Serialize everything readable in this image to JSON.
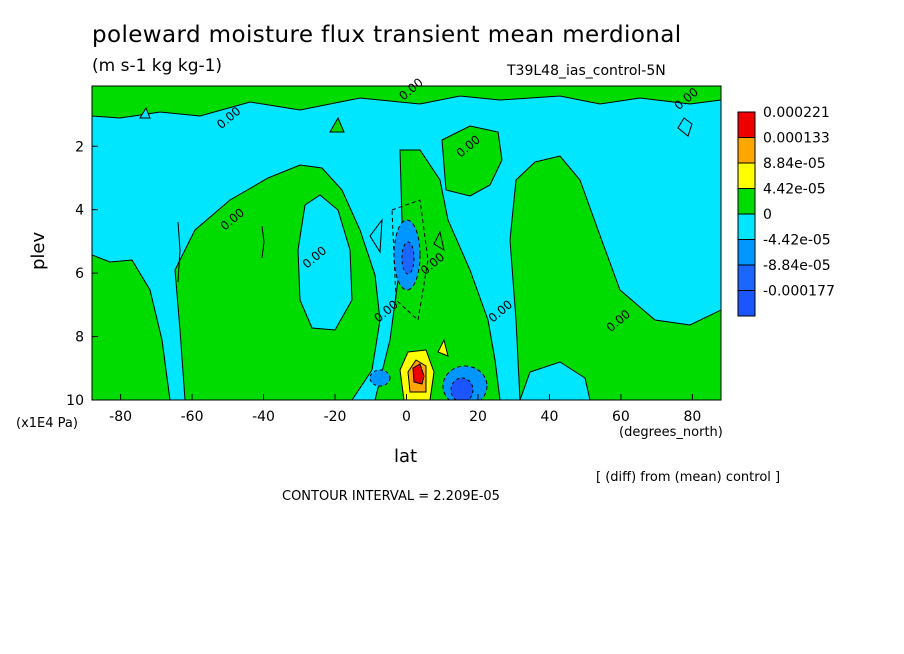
{
  "chart_data": {
    "type": "contour",
    "title": "poleward moisture flux transient mean merdional",
    "units": "(m s-1 kg kg-1)",
    "run_id": "T39L48_ias_control-5N",
    "xlabel": "lat",
    "x_unit": "(degrees_north)",
    "ylabel": "plev",
    "y_unit": "(x1E4 Pa)",
    "xlim": [
      -88,
      88
    ],
    "ylim": [
      10,
      0.1
    ],
    "x_ticks": [
      -80,
      -60,
      -40,
      -20,
      0,
      20,
      40,
      60,
      80
    ],
    "y_ticks": [
      2,
      4,
      6,
      8,
      10
    ],
    "contour_interval_label": "CONTOUR INTERVAL = 2.209E-05",
    "note": "[ (diff) from (mean) control ]",
    "legend_levels": [
      "0.000221",
      "0.000133",
      "8.84e-05",
      "4.42e-05",
      "0",
      "-4.42e-05",
      "-8.84e-05",
      "-0.000177"
    ],
    "legend_colors": [
      "#ee0000",
      "#ffa600",
      "#ffff00",
      "#00dc00",
      "#00e6ff",
      "#0096ff",
      "#1a66ff",
      "#1a55ff"
    ],
    "contour_labels": [
      {
        "text": "0.00",
        "lat": -48,
        "plev": 4.4
      },
      {
        "text": "0.00",
        "lat": -25,
        "plev": 5.6
      },
      {
        "text": "0.00",
        "lat": -5,
        "plev": 7.3
      },
      {
        "text": "0.00",
        "lat": 8,
        "plev": 5.8
      },
      {
        "text": "0.00",
        "lat": 18,
        "plev": 2.1
      },
      {
        "text": "0.00",
        "lat": 27,
        "plev": 7.3
      },
      {
        "text": "0.00",
        "lat": 60,
        "plev": 7.6
      },
      {
        "text": "0.00",
        "lat": -49,
        "plev": 1.2
      },
      {
        "text": "0.00",
        "lat": 2,
        "plev": 0.3
      },
      {
        "text": "0.00",
        "lat": 79,
        "plev": 0.6
      }
    ],
    "positive_regions": [
      {
        "lat_range": [
          -66,
          -22
        ],
        "plev_range": [
          2.5,
          10
        ],
        "level": "0"
      },
      {
        "lat_range": [
          30,
          66
        ],
        "plev_range": [
          1.8,
          10
        ],
        "level": "0"
      },
      {
        "lat_range": [
          -88,
          -78
        ],
        "plev_range": [
          6,
          10
        ],
        "level": "0"
      },
      {
        "lat_range": [
          0,
          8
        ],
        "plev_range": [
          8.4,
          10
        ],
        "level": "0.000221"
      }
    ],
    "negative_regions": [
      {
        "lat_range": [
          -1,
          4
        ],
        "plev_range": [
          3.4,
          7.0
        ],
        "level": "-8.84e-05"
      },
      {
        "lat_range": [
          11,
          22
        ],
        "plev_range": [
          8.9,
          10
        ],
        "level": "-0.000177"
      },
      {
        "lat_range": [
          -12,
          -5
        ],
        "plev_range": [
          8.7,
          10
        ],
        "level": "-4.42e-05"
      }
    ]
  }
}
